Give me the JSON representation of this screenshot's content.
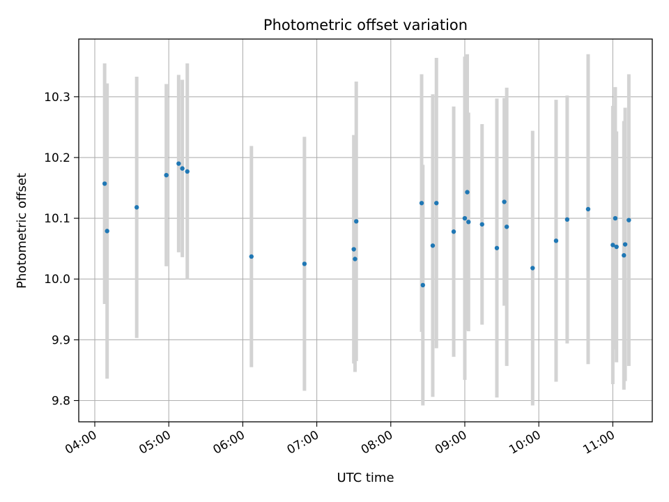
{
  "chart_data": {
    "type": "scatter",
    "title": "Photometric offset variation",
    "xlabel": "UTC time",
    "ylabel": "Photometric offset",
    "xlim": [
      "03:47",
      "11:32"
    ],
    "ylim": [
      9.765,
      10.395
    ],
    "xticks": [
      "04:00",
      "05:00",
      "06:00",
      "07:00",
      "08:00",
      "09:00",
      "10:00",
      "11:00"
    ],
    "yticks": [
      9.8,
      9.9,
      10.0,
      10.1,
      10.2,
      10.3
    ],
    "ytick_labels": [
      "9.8",
      "9.9",
      "10.0",
      "10.1",
      "10.2",
      "10.3"
    ],
    "grid": true,
    "marker_color": "#1f77b4",
    "errorbar_color": "#d3d3d3",
    "points": [
      {
        "x": "04:08",
        "y": 10.157,
        "err": 0.198
      },
      {
        "x": "04:10",
        "y": 10.079,
        "err": 0.243
      },
      {
        "x": "04:34",
        "y": 10.118,
        "err": 0.215
      },
      {
        "x": "04:58",
        "y": 10.171,
        "err": 0.15
      },
      {
        "x": "05:08",
        "y": 10.19,
        "err": 0.146
      },
      {
        "x": "05:11",
        "y": 10.182,
        "err": 0.146
      },
      {
        "x": "05:15",
        "y": 10.177,
        "err": 0.178
      },
      {
        "x": "06:07",
        "y": 10.037,
        "err": 0.182
      },
      {
        "x": "06:50",
        "y": 10.025,
        "err": 0.209
      },
      {
        "x": "07:30",
        "y": 10.049,
        "err": 0.188
      },
      {
        "x": "07:31",
        "y": 10.033,
        "err": 0.186
      },
      {
        "x": "07:32",
        "y": 10.095,
        "err": 0.23
      },
      {
        "x": "08:25",
        "y": 10.125,
        "err": 0.212
      },
      {
        "x": "08:26",
        "y": 9.99,
        "err": 0.198
      },
      {
        "x": "08:34",
        "y": 10.055,
        "err": 0.249
      },
      {
        "x": "08:37",
        "y": 10.125,
        "err": 0.239
      },
      {
        "x": "08:51",
        "y": 10.078,
        "err": 0.206
      },
      {
        "x": "09:00",
        "y": 10.1,
        "err": 0.266
      },
      {
        "x": "09:02",
        "y": 10.143,
        "err": 0.227
      },
      {
        "x": "09:03",
        "y": 10.094,
        "err": 0.18
      },
      {
        "x": "09:14",
        "y": 10.09,
        "err": 0.165
      },
      {
        "x": "09:26",
        "y": 10.051,
        "err": 0.246
      },
      {
        "x": "09:32",
        "y": 10.127,
        "err": 0.171
      },
      {
        "x": "09:34",
        "y": 10.086,
        "err": 0.229
      },
      {
        "x": "09:55",
        "y": 10.018,
        "err": 0.226
      },
      {
        "x": "10:14",
        "y": 10.063,
        "err": 0.232
      },
      {
        "x": "10:23",
        "y": 10.098,
        "err": 0.204
      },
      {
        "x": "10:40",
        "y": 10.115,
        "err": 0.255
      },
      {
        "x": "11:00",
        "y": 10.056,
        "err": 0.229
      },
      {
        "x": "11:02",
        "y": 10.1,
        "err": 0.216
      },
      {
        "x": "11:03",
        "y": 10.053,
        "err": 0.19
      },
      {
        "x": "11:09",
        "y": 10.039,
        "err": 0.221
      },
      {
        "x": "11:10",
        "y": 10.057,
        "err": 0.225
      },
      {
        "x": "11:13",
        "y": 10.097,
        "err": 0.24
      }
    ]
  }
}
